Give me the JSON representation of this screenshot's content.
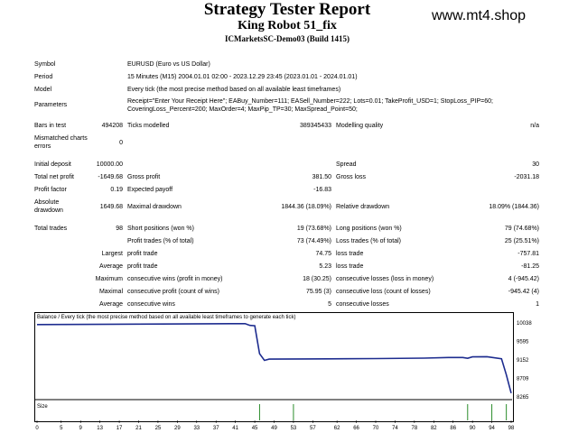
{
  "header": {
    "title": "Strategy Tester Report",
    "subtitle": "King Robot 51_fix",
    "server": "ICMarketsSC-Demo03 (Build 1415)",
    "site": "www.mt4.shop"
  },
  "info": {
    "symbol_label": "Symbol",
    "symbol_value": "EURUSD (Euro vs US Dollar)",
    "period_label": "Period",
    "period_value": "15 Minutes (M15) 2004.01.01 02:00 - 2023.12.29 23:45 (2023.01.01 - 2024.01.01)",
    "model_label": "Model",
    "model_value": "Every tick (the most precise method based on all available least timeframes)",
    "params_label": "Parameters",
    "params_line1": "Receipt=\"Enter Your Receipt Here\"; EABuy_Number=111; EASell_Number=222; Lots=0.01; TakeProfit_USD=1; StopLoss_PIP=60;",
    "params_line2": "CoveringLoss_Percent=200; MaxOrder=4; MaxPip_TP=30; MaxSpread_Point=50;"
  },
  "bars": {
    "bars_label": "Bars in test",
    "bars_value": "494208",
    "ticks_label": "Ticks modelled",
    "ticks_value": "389345433",
    "quality_label": "Modelling quality",
    "quality_value": "n/a",
    "mismatch_label1": "Mismatched charts",
    "mismatch_label2": "errors",
    "mismatch_value": "0"
  },
  "stats": {
    "deposit_label": "Initial deposit",
    "deposit_value": "10000.00",
    "spread_label": "Spread",
    "spread_value": "30",
    "netprofit_label": "Total net profit",
    "netprofit_value": "-1649.68",
    "grossprofit_label": "Gross profit",
    "grossprofit_value": "381.50",
    "grossloss_label": "Gross loss",
    "grossloss_value": "-2031.18",
    "pf_label": "Profit factor",
    "pf_value": "0.19",
    "payoff_label": "Expected payoff",
    "payoff_value": "-16.83",
    "absdd_label1": "Absolute",
    "absdd_label2": "drawdown",
    "absdd_value": "1649.68",
    "maxdd_label": "Maximal drawdown",
    "maxdd_value": "1844.36 (18.09%)",
    "reldd_label": "Relative drawdown",
    "reldd_value": "18.09% (1844.36)"
  },
  "trades": {
    "total_label": "Total trades",
    "total_value": "98",
    "short_label": "Short positions (won %)",
    "short_value": "19 (73.68%)",
    "long_label": "Long positions (won %)",
    "long_value": "79 (74.68%)",
    "ptrades_label": "Profit trades (% of total)",
    "ptrades_value": "73 (74.49%)",
    "ltrades_label": "Loss trades (% of total)",
    "ltrades_value": "25 (25.51%)",
    "largest": "Largest",
    "average": "Average",
    "maximum": "Maximum",
    "maximal": "Maximal",
    "pt_label": "profit trade",
    "largest_pt_value": "74.75",
    "average_pt_value": "5.23",
    "lt_label": "loss trade",
    "largest_lt_value": "-757.81",
    "average_lt_value": "-81.25",
    "cwins_money_label": "consecutive wins (profit in money)",
    "cwins_money_value": "18 (30.25)",
    "closs_money_label": "consecutive losses (loss in money)",
    "closs_money_value": "4 (-945.42)",
    "cprofit_count_label": "consecutive profit (count of wins)",
    "cprofit_count_value": "75.95 (3)",
    "closs_count_label": "consecutive loss (count of losses)",
    "closs_count_value": "-945.42 (4)",
    "cwins_label": "consecutive wins",
    "cwins_value": "5",
    "closses_label": "consecutive losses",
    "closses_value": "1"
  },
  "chart_data": {
    "type": "line",
    "title": "Balance / Every tick (the most precise method based on all available least timeframes to generate each tick)",
    "size_label": "Size",
    "y_ticks": [
      "10038",
      "9595",
      "9152",
      "8709",
      "8265"
    ],
    "x_ticks": [
      "0",
      "5",
      "9",
      "13",
      "17",
      "21",
      "25",
      "29",
      "33",
      "37",
      "41",
      "45",
      "49",
      "53",
      "57",
      "62",
      "66",
      "70",
      "74",
      "78",
      "82",
      "86",
      "90",
      "94",
      "98"
    ],
    "ylim": [
      8265,
      10038
    ],
    "xlim": [
      0,
      98
    ],
    "series": [
      {
        "x": [
          0,
          42,
          43,
          44,
          45,
          46,
          47,
          48,
          55,
          60,
          70,
          80,
          85,
          88,
          89,
          90,
          93,
          96,
          97,
          98
        ],
        "values": [
          10000,
          10020,
          10020,
          9980,
          9970,
          9300,
          9140,
          9170,
          9175,
          9178,
          9185,
          9195,
          9210,
          9210,
          9190,
          9225,
          9230,
          9180,
          8800,
          8355
        ]
      }
    ],
    "size_bars": [
      46,
      53,
      89,
      94,
      97
    ],
    "colors": {
      "balance": "#1d2c8f",
      "size": "#2a8c2a",
      "axis": "#000000"
    }
  }
}
